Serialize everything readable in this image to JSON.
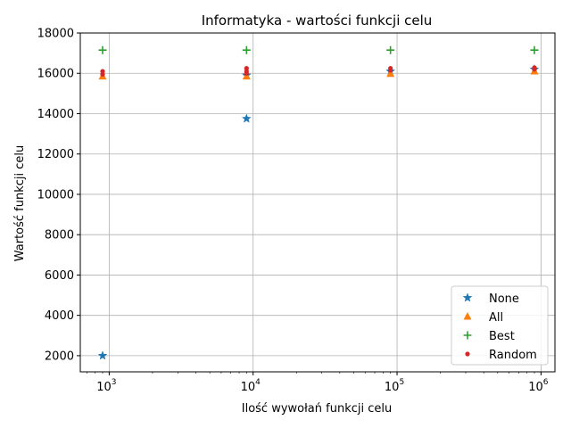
{
  "chart_data": {
    "type": "scatter",
    "title": "Informatyka - wartości funkcji celu",
    "xlabel": "Ilość wywołań funkcji celu",
    "ylabel": "Wartość funkcji celu",
    "x_scale": "log",
    "xlim": [
      630,
      1250000
    ],
    "ylim": [
      1200,
      18000
    ],
    "grid": true,
    "x_ticks": [
      {
        "value": 1000,
        "base": "10",
        "exp": "3"
      },
      {
        "value": 10000,
        "base": "10",
        "exp": "4"
      },
      {
        "value": 100000,
        "base": "10",
        "exp": "5"
      },
      {
        "value": 1000000,
        "base": "10",
        "exp": "6"
      }
    ],
    "y_ticks": [
      2000,
      4000,
      6000,
      8000,
      10000,
      12000,
      14000,
      16000,
      18000
    ],
    "legend_position": "lower-right",
    "series": [
      {
        "name": "None",
        "marker": "star",
        "color": "#1f77b4",
        "points": [
          [
            900,
            2000
          ],
          [
            9000,
            13750
          ],
          [
            9000,
            15900
          ],
          [
            90000,
            16100
          ],
          [
            900000,
            16200
          ]
        ]
      },
      {
        "name": "All",
        "marker": "triangle",
        "color": "#ff7f0e",
        "points": [
          [
            900,
            15850
          ],
          [
            9000,
            15850
          ],
          [
            90000,
            15980
          ],
          [
            900000,
            16100
          ]
        ]
      },
      {
        "name": "Best",
        "marker": "plus",
        "color": "#2ca02c",
        "points": [
          [
            900,
            17150
          ],
          [
            9000,
            17150
          ],
          [
            90000,
            17150
          ],
          [
            900000,
            17150
          ]
        ]
      },
      {
        "name": "Random",
        "marker": "dot",
        "color": "#d62728",
        "points": [
          [
            900,
            16100
          ],
          [
            900,
            15950
          ],
          [
            9000,
            16250
          ],
          [
            9000,
            16100
          ],
          [
            9000,
            16000
          ],
          [
            90000,
            16250
          ],
          [
            90000,
            16150
          ],
          [
            900000,
            16280
          ],
          [
            900000,
            16200
          ]
        ]
      }
    ]
  }
}
